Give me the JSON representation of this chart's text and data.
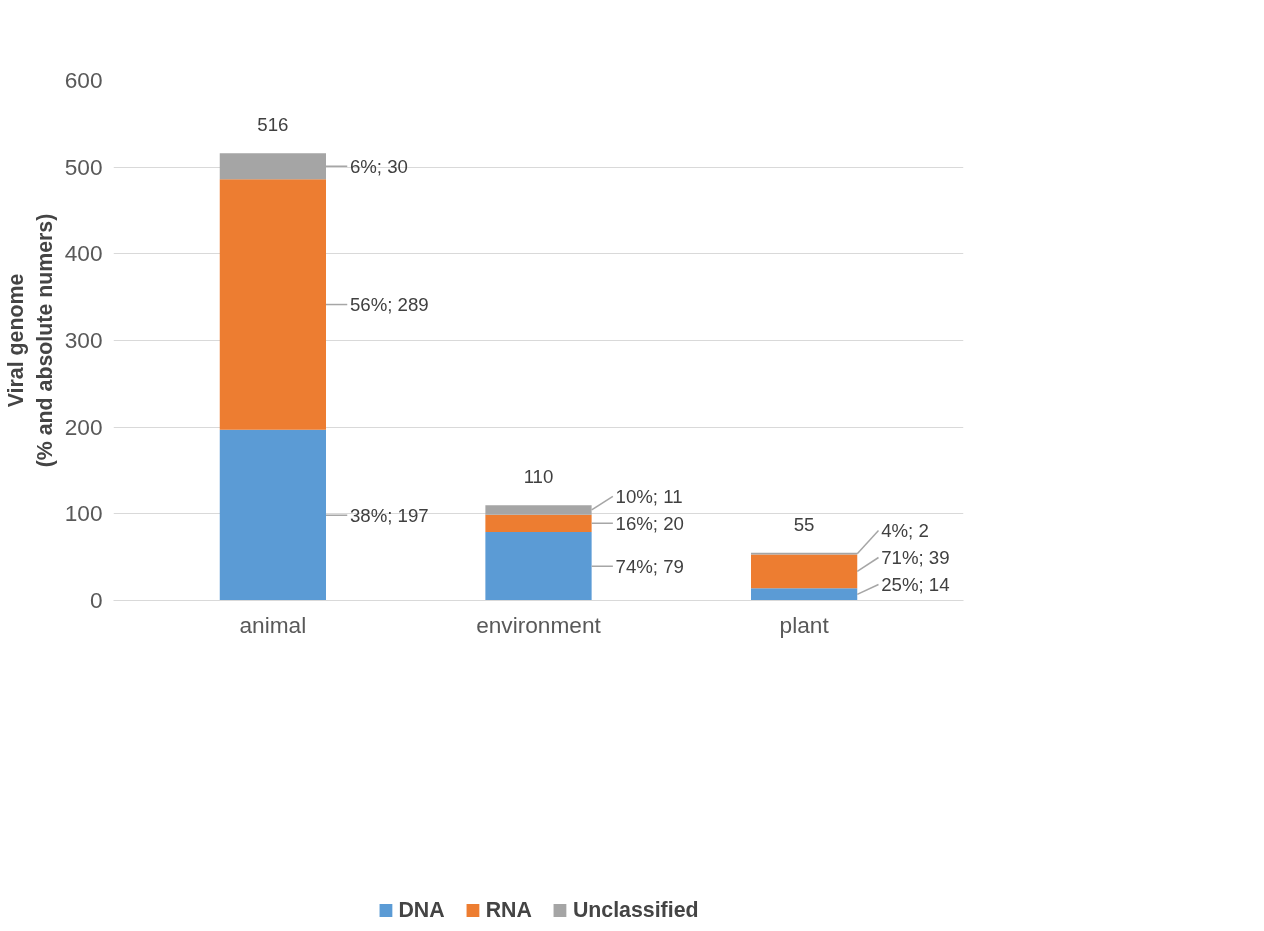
{
  "chart_data": {
    "type": "bar",
    "stacked": true,
    "ylabel": "Viral genome\n(% and absolute numers)",
    "categories": [
      "animal",
      "environment",
      "plant"
    ],
    "series": [
      {
        "name": "DNA",
        "color": "#5b9bd5",
        "values": [
          197,
          79,
          14
        ],
        "value_labels": [
          "38%; 197",
          "74%; 79",
          "25%; 14"
        ]
      },
      {
        "name": "RNA",
        "color": "#ed7d31",
        "values": [
          289,
          20,
          39
        ],
        "value_labels": [
          "56%; 289",
          "16%; 20",
          "71%; 39"
        ]
      },
      {
        "name": "Unclassified",
        "color": "#a5a5a5",
        "values": [
          30,
          11,
          2
        ],
        "value_labels": [
          "6%; 30",
          "10%; 11",
          "4%; 2"
        ]
      }
    ],
    "totals": [
      "516",
      "110",
      "55"
    ],
    "ylim": [
      0,
      600
    ],
    "yticks": [
      0,
      100,
      200,
      300,
      400,
      500,
      600
    ],
    "grid": "y",
    "legend": "bottom"
  }
}
